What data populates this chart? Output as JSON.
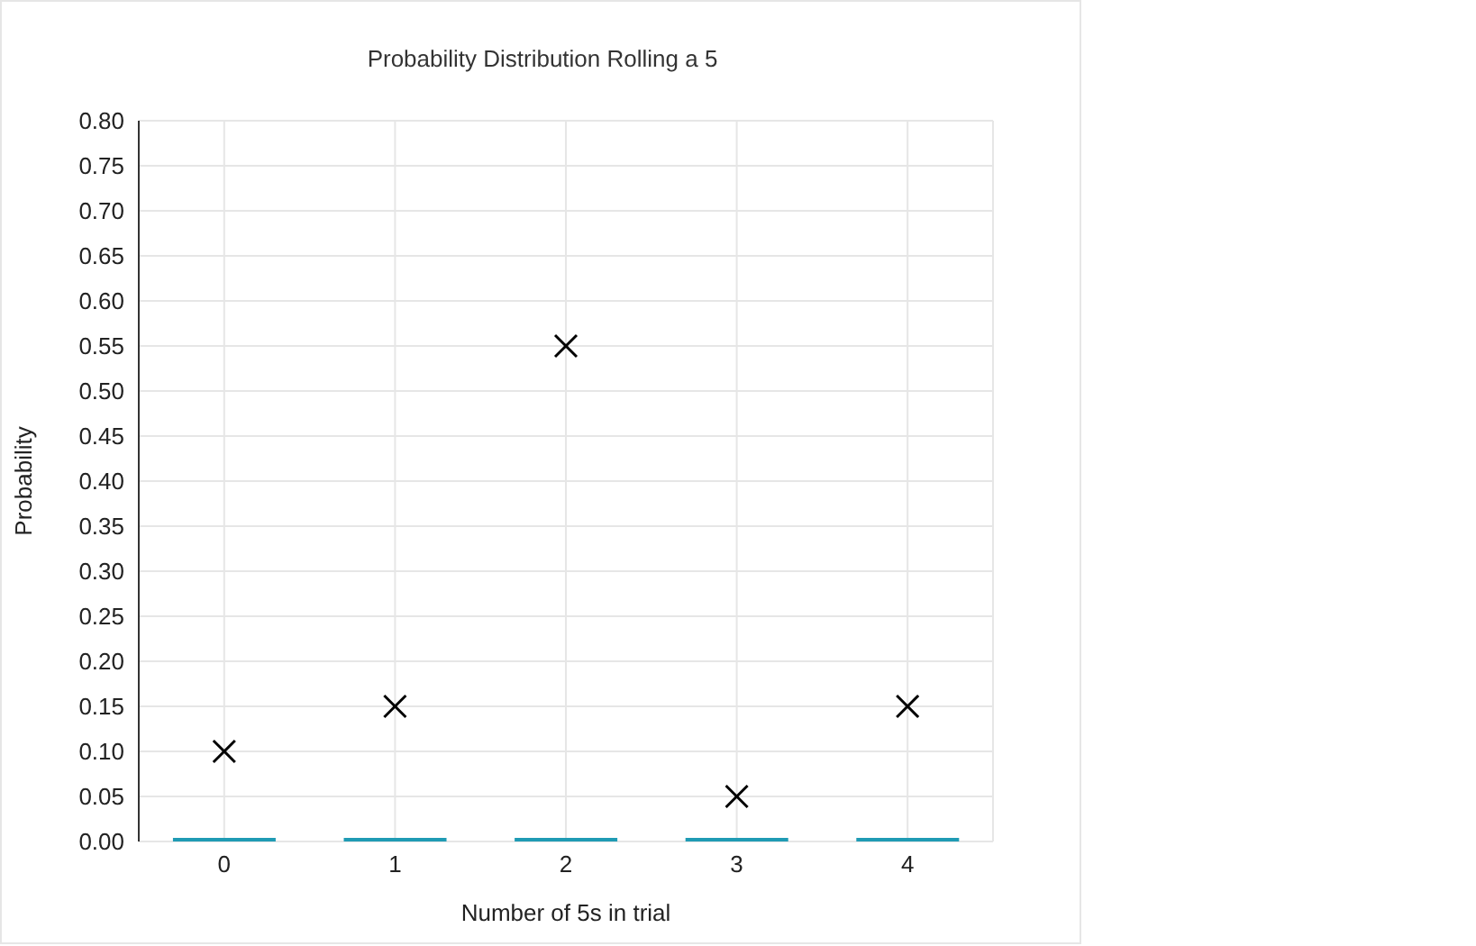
{
  "chart_data": {
    "type": "bar",
    "title": "Probability Distribution Rolling a 5",
    "xlabel": "Number of 5s in trial",
    "ylabel": "Probability",
    "categories": [
      "0",
      "1",
      "2",
      "3",
      "4"
    ],
    "series": [
      {
        "color": "#1f9bb4",
        "values": [
          0,
          0,
          0,
          0,
          0
        ]
      },
      {
        "type": "scatter",
        "color": "#000000",
        "values": [
          0.1,
          0.15,
          0.55,
          0.05,
          0.15
        ]
      }
    ],
    "ylim": [
      0,
      0.8
    ],
    "yticks": [
      {
        "value": 0,
        "label": "0.00"
      },
      {
        "value": 0.05,
        "label": "0.05"
      },
      {
        "value": 0.1,
        "label": "0.10"
      },
      {
        "value": 0.15,
        "label": "0.15"
      },
      {
        "value": 0.2,
        "label": "0.20"
      },
      {
        "value": 0.25,
        "label": "0.25"
      },
      {
        "value": 0.3,
        "label": "0.30"
      },
      {
        "value": 0.35,
        "label": "0.35"
      },
      {
        "value": 0.4,
        "label": "0.40"
      },
      {
        "value": 0.45,
        "label": "0.45"
      },
      {
        "value": 0.5,
        "label": "0.50"
      },
      {
        "value": 0.55,
        "label": "0.55"
      },
      {
        "value": 0.6,
        "label": "0.60"
      },
      {
        "value": 0.65,
        "label": "0.65"
      },
      {
        "value": 0.7,
        "label": "0.70"
      },
      {
        "value": 0.75,
        "label": "0.75"
      },
      {
        "value": 0.8,
        "label": "0.80"
      }
    ],
    "grid": true,
    "marker": "cross"
  }
}
